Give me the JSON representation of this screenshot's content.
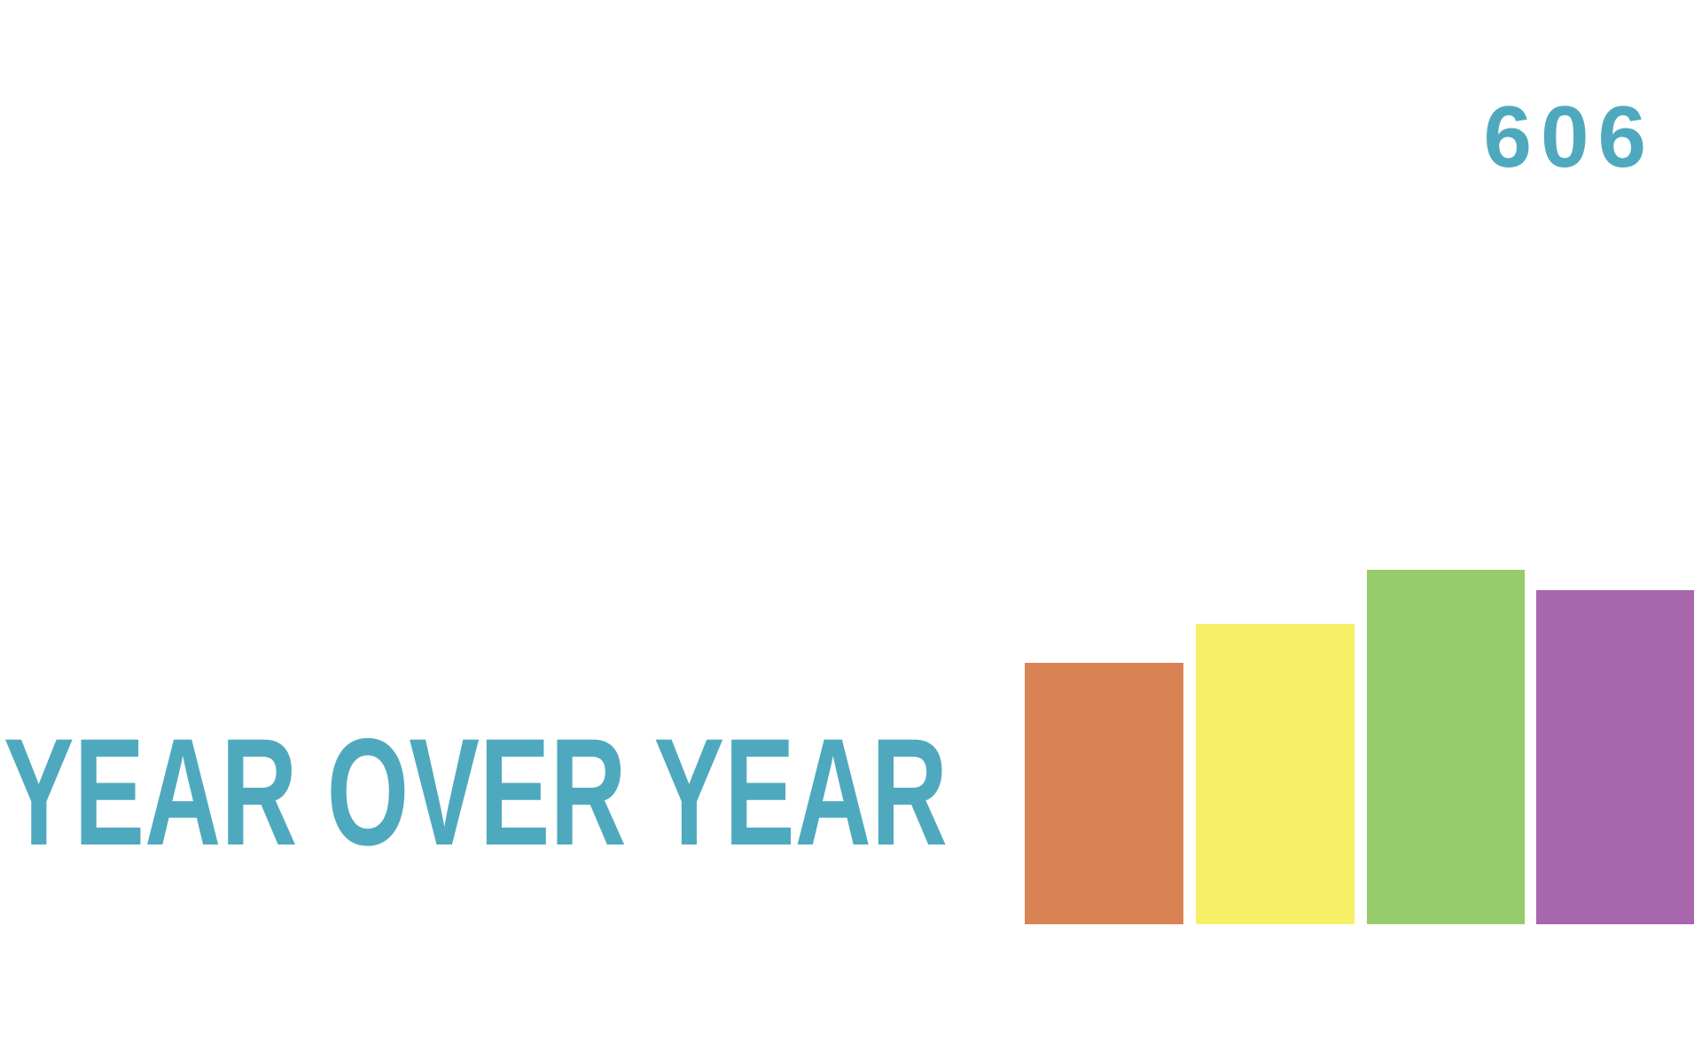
{
  "counter": "606",
  "headline": "YEAR OVER YEAR"
}
